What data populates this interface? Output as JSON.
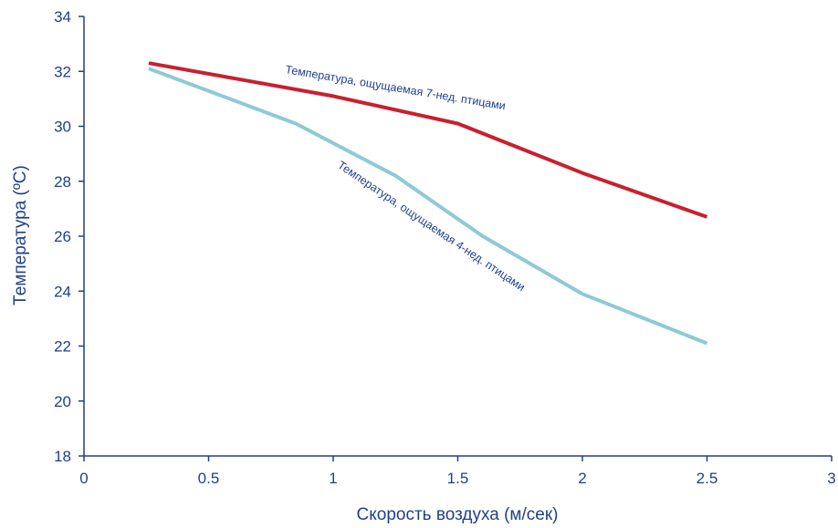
{
  "chart_data": {
    "type": "line",
    "xlabel": "Скорость воздуха (м/сек)",
    "ylabel": "Температура (ºC)",
    "xlim": [
      0,
      3
    ],
    "ylim": [
      18,
      34
    ],
    "x_ticks": [
      "0",
      "0.5",
      "1",
      "1.5",
      "2",
      "2.5",
      "3"
    ],
    "y_ticks": [
      "18",
      "20",
      "22",
      "24",
      "26",
      "28",
      "30",
      "32",
      "34"
    ],
    "grid": false,
    "series": [
      {
        "name": "Температура, ощущаемая 7-нед. птицами",
        "color": "#c8202f",
        "x": [
          0.26,
          1.0,
          1.5,
          2.0,
          2.5
        ],
        "y": [
          32.3,
          31.1,
          30.1,
          28.3,
          26.7
        ]
      },
      {
        "name": "Температура, ощущаемая 4-нед. птицами",
        "color": "#8ec9d6",
        "x": [
          0.26,
          0.85,
          1.25,
          1.6,
          2.0,
          2.5
        ],
        "y": [
          32.1,
          30.1,
          28.2,
          26.0,
          23.9,
          22.1
        ]
      }
    ]
  }
}
